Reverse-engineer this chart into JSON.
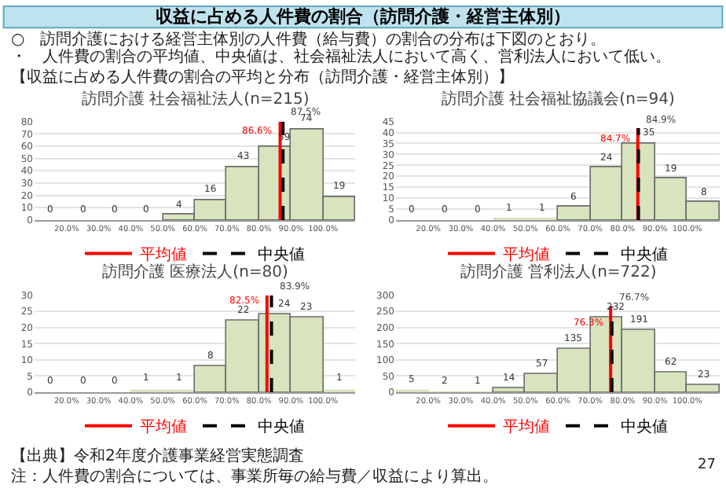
{
  "chart_data": [
    {
      "type": "other",
      "title": "収益に占める人件費の割合（訪問介護・経営主体別）",
      "annotations": [
        "○　訪問介護における経営主体別の人件費（給与費）の割合の分布は下図のとおり。",
        "・　人件費の割合の平均値、中央値は、社会福祉法人において高く、営利法人において低い。",
        "【収益に占める人件費の割合の平均と分布（訪問介護・経営主体別）】",
        "【出典】令和2年度介護事業経営実態調査",
        "注：人件費の割合については、事業所毎の給与費／収益により算出。",
        "27"
      ]
    },
    {
      "type": "histogram",
      "title": "訪問介護 社会福祉法人(n=215)",
      "bins": [
        10,
        20,
        30,
        40,
        50,
        60,
        70,
        80,
        90,
        100,
        110
      ],
      "values": [
        0,
        0,
        0,
        0,
        4,
        16,
        43,
        59,
        74,
        19
      ],
      "value_labels": [
        "0",
        "0",
        "0",
        "0",
        "4",
        "16",
        "43",
        "59",
        "74",
        "19"
      ],
      "color": "#d7e4bd",
      "series": [
        {
          "type": "line",
          "name": "平均値",
          "color": "#ff0000",
          "line_style": "solid",
          "x": [
            86.6,
            86.6
          ],
          "values": [
            0,
            80
          ]
        },
        {
          "type": "line",
          "name": "中央値",
          "color": "#000000",
          "line_style": "dashed",
          "x": [
            87.5,
            87.5
          ],
          "values": [
            0,
            80
          ]
        }
      ],
      "annotations": [
        {
          "text": "86.6%",
          "x": 86.6,
          "y": 72
        },
        {
          "text": "87.5%",
          "x": 87.5,
          "y": 80
        }
      ],
      "xlim": [
        10,
        110
      ],
      "xticks": [
        {
          "value": 20,
          "label": "20.0%"
        },
        {
          "value": 30,
          "label": "30.0%"
        },
        {
          "value": 40,
          "label": "40.0%"
        },
        {
          "value": 50,
          "label": "50.0%"
        },
        {
          "value": 60,
          "label": "60.0%"
        },
        {
          "value": 70,
          "label": "70.0%"
        },
        {
          "value": 80,
          "label": "80.0%"
        },
        {
          "value": 90,
          "label": "90.0%"
        },
        {
          "value": 100,
          "label": "100.0%"
        }
      ],
      "ylim": [
        0,
        80
      ],
      "yticks": [
        0,
        10,
        20,
        30,
        40,
        50,
        60,
        70,
        80
      ],
      "grid": "y",
      "legend": "bottom"
    },
    {
      "type": "histogram",
      "title": "訪問介護 社会福祉協議会(n=94)",
      "bins": [
        10,
        20,
        30,
        40,
        50,
        60,
        70,
        80,
        90,
        100,
        110
      ],
      "values": [
        0,
        0,
        0,
        1,
        1,
        6,
        24,
        35,
        19,
        8
      ],
      "value_labels": [
        "0",
        "0",
        "0",
        "1",
        "1",
        "6",
        "24",
        "35",
        "19",
        "8"
      ],
      "color": "#d7e4bd",
      "series": [
        {
          "type": "line",
          "name": "平均値",
          "color": "#ff0000",
          "line_style": "solid",
          "x": [
            84.7,
            84.7
          ],
          "values": [
            0,
            42
          ]
        },
        {
          "type": "line",
          "name": "中央値",
          "color": "#000000",
          "line_style": "dashed",
          "x": [
            84.9,
            84.9
          ],
          "values": [
            0,
            42
          ]
        }
      ],
      "annotations": [
        {
          "text": "84.7%",
          "x": 84.7,
          "y": 37
        },
        {
          "text": "84.9%",
          "x": 84.9,
          "y": 42
        }
      ],
      "xlim": [
        10,
        110
      ],
      "xticks": [
        {
          "value": 20,
          "label": "20.0%"
        },
        {
          "value": 30,
          "label": "30.0%"
        },
        {
          "value": 40,
          "label": "40.0%"
        },
        {
          "value": 50,
          "label": "50.0%"
        },
        {
          "value": 60,
          "label": "60.0%"
        },
        {
          "value": 70,
          "label": "70.0%"
        },
        {
          "value": 80,
          "label": "80.0%"
        },
        {
          "value": 90,
          "label": "90.0%"
        },
        {
          "value": 100,
          "label": "100.0%"
        }
      ],
      "ylim": [
        0,
        45
      ],
      "yticks": [
        0,
        5,
        10,
        15,
        20,
        25,
        30,
        35,
        40,
        45
      ],
      "grid": "y",
      "legend": "bottom"
    },
    {
      "type": "histogram",
      "title": "訪問介護 医療法人(n=80)",
      "bins": [
        10,
        20,
        30,
        40,
        50,
        60,
        70,
        80,
        90,
        100,
        110
      ],
      "values": [
        0,
        0,
        0,
        1,
        1,
        8,
        22,
        24,
        23,
        1
      ],
      "value_labels": [
        "0",
        "0",
        "0",
        "1",
        "1",
        "8",
        "22",
        "24",
        "23",
        "1"
      ],
      "color": "#d7e4bd",
      "series": [
        {
          "type": "line",
          "name": "平均値",
          "color": "#ff0000",
          "line_style": "solid",
          "x": [
            82.5,
            82.5
          ],
          "values": [
            0,
            30
          ]
        },
        {
          "type": "line",
          "name": "中央値",
          "color": "#000000",
          "line_style": "dashed",
          "x": [
            83.9,
            83.9
          ],
          "values": [
            0,
            30
          ]
        }
      ],
      "annotations": [
        {
          "text": "82.5%",
          "x": 82.5,
          "y": 28
        },
        {
          "text": "83.9%",
          "x": 83.9,
          "y": 30
        }
      ],
      "xlim": [
        10,
        110
      ],
      "xticks": [
        {
          "value": 20,
          "label": "20.0%"
        },
        {
          "value": 30,
          "label": "30.0%"
        },
        {
          "value": 40,
          "label": "40.0%"
        },
        {
          "value": 50,
          "label": "50.0%"
        },
        {
          "value": 60,
          "label": "60.0%"
        },
        {
          "value": 70,
          "label": "70.0%"
        },
        {
          "value": 80,
          "label": "80.0%"
        },
        {
          "value": 90,
          "label": "90.0%"
        },
        {
          "value": 100,
          "label": "100.0%"
        }
      ],
      "ylim": [
        0,
        30
      ],
      "yticks": [
        0,
        5,
        10,
        15,
        20,
        25,
        30
      ],
      "grid": "y",
      "legend": "bottom"
    },
    {
      "type": "histogram",
      "title": "訪問介護 営利法人(n=722)",
      "bins": [
        10,
        20,
        30,
        40,
        50,
        60,
        70,
        80,
        90,
        100,
        110
      ],
      "values": [
        5,
        2,
        1,
        14,
        57,
        135,
        232,
        191,
        62,
        23
      ],
      "value_labels": [
        "5",
        "2",
        "1",
        "14",
        "57",
        "135",
        "232",
        "191",
        "62",
        "23"
      ],
      "color": "#d7e4bd",
      "series": [
        {
          "type": "line",
          "name": "平均値",
          "color": "#ff0000",
          "line_style": "solid",
          "x": [
            76.3,
            76.3
          ],
          "values": [
            0,
            265
          ]
        },
        {
          "type": "line",
          "name": "中央値",
          "color": "#000000",
          "line_style": "dashed",
          "x": [
            76.7,
            76.7
          ],
          "values": [
            0,
            265
          ]
        }
      ],
      "annotations": [
        {
          "text": "76.3%",
          "x": 76.3,
          "y": 215
        },
        {
          "text": "76.7%",
          "x": 76.7,
          "y": 265
        }
      ],
      "xlim": [
        10,
        110
      ],
      "xticks": [
        {
          "value": 20,
          "label": "20.0%"
        },
        {
          "value": 30,
          "label": "30.0%"
        },
        {
          "value": 40,
          "label": "40.0%"
        },
        {
          "value": 50,
          "label": "50.0%"
        },
        {
          "value": 60,
          "label": "60.0%"
        },
        {
          "value": 70,
          "label": "70.0%"
        },
        {
          "value": 80,
          "label": "80.0%"
        },
        {
          "value": 90,
          "label": "90.0%"
        },
        {
          "value": 100,
          "label": "100.0%"
        }
      ],
      "ylim": [
        0,
        300
      ],
      "yticks": [
        0,
        50,
        100,
        150,
        200,
        250,
        300
      ],
      "grid": "y",
      "legend": "bottom"
    }
  ]
}
